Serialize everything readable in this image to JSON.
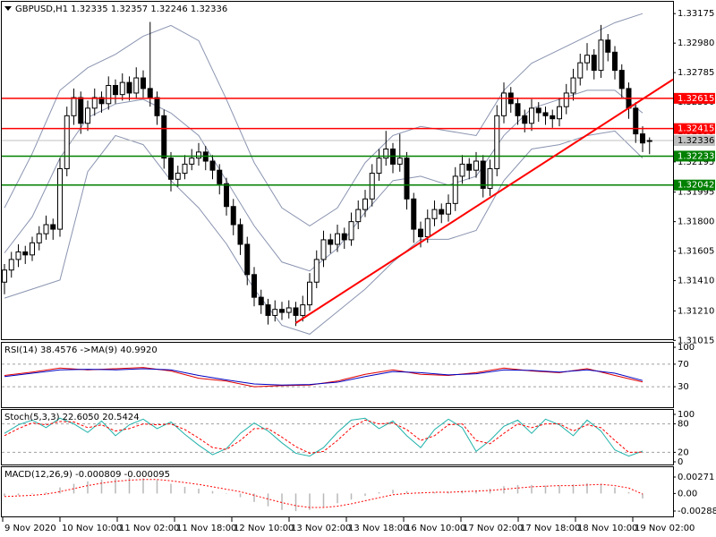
{
  "chart_data": [
    {
      "type": "candlestick",
      "title": "GBPUSD,H1",
      "color_up": "#ffffff",
      "color_down": "#000000",
      "ylim": [
        1.31011,
        1.33265
      ],
      "yticks": [
        1.33175,
        {
          "value": 1.3298,
          "label": "1.32980"
        },
        1.32785,
        {
          "value": 1.3259,
          "label": "1.32590"
        },
        1.32395,
        1.32195,
        1.31995,
        {
          "value": 1.318,
          "label": "1.31800"
        },
        1.31605,
        {
          "value": 1.3141,
          "label": "1.31410"
        },
        {
          "value": 1.3121,
          "label": "1.31210"
        },
        1.31015
      ],
      "time_labels": [
        "9 Nov 2020",
        "10 Nov 10:00",
        "11 Nov 02:00",
        "11 Nov 18:00",
        "12 Nov 10:00",
        "13 Nov 02:00",
        "13 Nov 18:00",
        "16 Nov 10:00",
        "17 Nov 02:00",
        "17 Nov 18:00",
        "18 Nov 10:00",
        "19 Nov 02:00"
      ],
      "candles": [
        [
          1.314,
          1.3152,
          1.3132,
          1.3148
        ],
        [
          1.3148,
          1.316,
          1.3143,
          1.3155
        ],
        [
          1.3155,
          1.3165,
          1.315,
          1.316
        ],
        [
          1.316,
          1.3164,
          1.3152,
          1.3158
        ],
        [
          1.3158,
          1.317,
          1.3154,
          1.3166
        ],
        [
          1.3166,
          1.3177,
          1.3161,
          1.3172
        ],
        [
          1.3172,
          1.3184,
          1.3168,
          1.3178
        ],
        [
          1.3178,
          1.3182,
          1.3168,
          1.3175
        ],
        [
          1.3175,
          1.3222,
          1.317,
          1.3215
        ],
        [
          1.3215,
          1.3256,
          1.321,
          1.325
        ],
        [
          1.325,
          1.3268,
          1.3244,
          1.3262
        ],
        [
          1.3262,
          1.3266,
          1.3238,
          1.3245
        ],
        [
          1.3245,
          1.326,
          1.324,
          1.3255
        ],
        [
          1.3255,
          1.3268,
          1.325,
          1.3262
        ],
        [
          1.3262,
          1.3266,
          1.3252,
          1.3258
        ],
        [
          1.3258,
          1.3276,
          1.3254,
          1.327
        ],
        [
          1.327,
          1.3274,
          1.3258,
          1.3264
        ],
        [
          1.3264,
          1.3278,
          1.326,
          1.3272
        ],
        [
          1.3272,
          1.3276,
          1.326,
          1.3265
        ],
        [
          1.3265,
          1.3282,
          1.3261,
          1.3275
        ],
        [
          1.3275,
          1.328,
          1.3262,
          1.3268
        ],
        [
          1.3268,
          1.3312,
          1.3256,
          1.3262
        ],
        [
          1.3262,
          1.3266,
          1.3244,
          1.325
        ],
        [
          1.325,
          1.3254,
          1.3215,
          1.3222
        ],
        [
          1.3222,
          1.3226,
          1.32,
          1.3208
        ],
        [
          1.3208,
          1.3217,
          1.3203,
          1.3212
        ],
        [
          1.3212,
          1.3224,
          1.3208,
          1.3218
        ],
        [
          1.3218,
          1.3228,
          1.3214,
          1.3222
        ],
        [
          1.3222,
          1.3232,
          1.3217,
          1.3226
        ],
        [
          1.3226,
          1.323,
          1.3214,
          1.322
        ],
        [
          1.322,
          1.3224,
          1.3208,
          1.3214
        ],
        [
          1.3214,
          1.3218,
          1.3198,
          1.3205
        ],
        [
          1.3205,
          1.3209,
          1.3184,
          1.319
        ],
        [
          1.319,
          1.3195,
          1.3171,
          1.3178
        ],
        [
          1.3178,
          1.3182,
          1.3158,
          1.3165
        ],
        [
          1.3165,
          1.317,
          1.3138,
          1.3145
        ],
        [
          1.3145,
          1.315,
          1.3124,
          1.313
        ],
        [
          1.313,
          1.3135,
          1.3119,
          1.3125
        ],
        [
          1.3125,
          1.3129,
          1.3112,
          1.3118
        ],
        [
          1.3118,
          1.3128,
          1.3114,
          1.3122
        ],
        [
          1.3122,
          1.3127,
          1.3115,
          1.312
        ],
        [
          1.312,
          1.3128,
          1.3116,
          1.3123
        ],
        [
          1.3123,
          1.3127,
          1.3111,
          1.3118
        ],
        [
          1.3118,
          1.3131,
          1.3114,
          1.3125
        ],
        [
          1.3125,
          1.3146,
          1.3121,
          1.314
        ],
        [
          1.314,
          1.3161,
          1.3136,
          1.3155
        ],
        [
          1.3155,
          1.3174,
          1.315,
          1.3168
        ],
        [
          1.3168,
          1.3172,
          1.3159,
          1.3165
        ],
        [
          1.3165,
          1.3178,
          1.316,
          1.3172
        ],
        [
          1.3172,
          1.3176,
          1.3162,
          1.3168
        ],
        [
          1.3168,
          1.3186,
          1.3164,
          1.318
        ],
        [
          1.318,
          1.3194,
          1.3175,
          1.3188
        ],
        [
          1.3188,
          1.3201,
          1.3183,
          1.3195
        ],
        [
          1.3195,
          1.3218,
          1.319,
          1.3212
        ],
        [
          1.3212,
          1.3228,
          1.3207,
          1.3222
        ],
        [
          1.3222,
          1.324,
          1.3217,
          1.3228
        ],
        [
          1.3228,
          1.3232,
          1.3212,
          1.3218
        ],
        [
          1.3218,
          1.3238,
          1.3213,
          1.3222
        ],
        [
          1.3222,
          1.3226,
          1.3188,
          1.3195
        ],
        [
          1.3195,
          1.3199,
          1.3166,
          1.3175
        ],
        [
          1.3175,
          1.318,
          1.3163,
          1.317
        ],
        [
          1.317,
          1.3188,
          1.3166,
          1.3182
        ],
        [
          1.3182,
          1.3194,
          1.3177,
          1.3188
        ],
        [
          1.3188,
          1.3192,
          1.3179,
          1.3185
        ],
        [
          1.3185,
          1.3198,
          1.318,
          1.3192
        ],
        [
          1.3192,
          1.3216,
          1.3187,
          1.321
        ],
        [
          1.321,
          1.3224,
          1.3205,
          1.3218
        ],
        [
          1.3218,
          1.3222,
          1.3208,
          1.3214
        ],
        [
          1.3214,
          1.3226,
          1.3209,
          1.322
        ],
        [
          1.322,
          1.3224,
          1.3196,
          1.3202
        ],
        [
          1.3202,
          1.3221,
          1.3197,
          1.3215
        ],
        [
          1.3215,
          1.3257,
          1.321,
          1.325
        ],
        [
          1.325,
          1.3272,
          1.3245,
          1.3265
        ],
        [
          1.3265,
          1.3269,
          1.3252,
          1.3258
        ],
        [
          1.3258,
          1.3262,
          1.3244,
          1.325
        ],
        [
          1.325,
          1.3254,
          1.3239,
          1.3245
        ],
        [
          1.3245,
          1.3261,
          1.324,
          1.3255
        ],
        [
          1.3255,
          1.3259,
          1.3246,
          1.3252
        ],
        [
          1.3252,
          1.3256,
          1.3244,
          1.325
        ],
        [
          1.325,
          1.3254,
          1.3242,
          1.3248
        ],
        [
          1.3248,
          1.3262,
          1.3243,
          1.3256
        ],
        [
          1.3256,
          1.3271,
          1.3251,
          1.3265
        ],
        [
          1.3265,
          1.3281,
          1.326,
          1.3275
        ],
        [
          1.3275,
          1.3291,
          1.327,
          1.3285
        ],
        [
          1.3285,
          1.3298,
          1.328,
          1.329
        ],
        [
          1.329,
          1.3294,
          1.3274,
          1.328
        ],
        [
          1.328,
          1.331,
          1.3275,
          1.33
        ],
        [
          1.33,
          1.3304,
          1.3286,
          1.3292
        ],
        [
          1.3292,
          1.3296,
          1.3274,
          1.328
        ],
        [
          1.328,
          1.3284,
          1.3262,
          1.3268
        ],
        [
          1.3268,
          1.3272,
          1.3248,
          1.3255
        ],
        [
          1.3255,
          1.3259,
          1.3232,
          1.3238
        ],
        [
          1.3238,
          1.3243,
          1.3226,
          1.3232
        ],
        [
          1.32335,
          1.32357,
          1.32246,
          1.32336
        ]
      ],
      "bands": {
        "color": "#8a94b0",
        "x": [
          0,
          4,
          8,
          12,
          16,
          20,
          24,
          28,
          32,
          36,
          40,
          44,
          48,
          52,
          56,
          60,
          64,
          68,
          72,
          76,
          80,
          84,
          88,
          92
        ],
        "upper": [
          1.31891,
          1.3225,
          1.32668,
          1.32817,
          1.32906,
          1.33026,
          1.33097,
          1.32996,
          1.32608,
          1.3219,
          1.31891,
          1.31772,
          1.31891,
          1.3219,
          1.32369,
          1.32429,
          1.32399,
          1.32369,
          1.32668,
          1.32847,
          1.32936,
          1.33026,
          1.33115,
          1.33175
        ],
        "middle": [
          1.31593,
          1.31832,
          1.3222,
          1.32488,
          1.32578,
          1.32608,
          1.32518,
          1.32369,
          1.32071,
          1.31772,
          1.31533,
          1.31474,
          1.31623,
          1.31862,
          1.32071,
          1.321,
          1.32041,
          1.321,
          1.32369,
          1.32548,
          1.32608,
          1.32668,
          1.32668,
          1.32518
        ],
        "lower": [
          1.31294,
          1.31354,
          1.31414,
          1.3213,
          1.32369,
          1.32309,
          1.32071,
          1.31891,
          1.31653,
          1.31354,
          1.31115,
          1.31056,
          1.31205,
          1.31354,
          1.31533,
          1.31683,
          1.31683,
          1.31742,
          1.32071,
          1.3228,
          1.32309,
          1.32369,
          1.32399,
          1.3222
        ]
      },
      "hlines": [
        {
          "value": 1.32615,
          "color": "#ff0000"
        },
        {
          "value": 1.32415,
          "color": "#ff0000"
        },
        {
          "value": 1.32233,
          "color": "#008000"
        },
        {
          "value": 1.32042,
          "color": "#008000"
        }
      ],
      "current_price": {
        "value": 1.32336,
        "color": "#c0c0c0"
      },
      "trendline": {
        "x": [
          42,
          96.4
        ],
        "y": [
          1.3113,
          1.3274
        ],
        "color": "#ff0000"
      }
    },
    {
      "type": "line",
      "ylim": [
        0,
        100
      ],
      "yticks": [
        100,
        70,
        30
      ],
      "x": [
        0,
        4,
        8,
        12,
        16,
        20,
        24,
        28,
        32,
        36,
        40,
        44,
        48,
        52,
        56,
        60,
        64,
        68,
        72,
        76,
        80,
        84,
        88,
        92
      ],
      "series": [
        {
          "name": "RSI(14)",
          "readout": "38.4576",
          "color": "#e00000",
          "dash": "none",
          "values": [
            50,
            56,
            63,
            60,
            62,
            64,
            58,
            45,
            40,
            30,
            32,
            33,
            40,
            52,
            60,
            52,
            50,
            55,
            63,
            58,
            55,
            62,
            50,
            38.4576
          ]
        },
        {
          "name": "->MA(9)",
          "readout": "40.9920",
          "color": "#0000c0",
          "dash": "none",
          "values": [
            48,
            54,
            60,
            61,
            60,
            62,
            60,
            50,
            42,
            35,
            33,
            34,
            38,
            48,
            57,
            55,
            51,
            53,
            60,
            59,
            56,
            60,
            54,
            40.992
          ]
        }
      ]
    },
    {
      "type": "line",
      "title": "Stoch(5,3,3)",
      "ylim": [
        0,
        100
      ],
      "yticks": [
        100,
        80,
        20,
        0
      ],
      "x": [
        0,
        2,
        4,
        6,
        8,
        10,
        12,
        14,
        16,
        18,
        20,
        22,
        24,
        26,
        28,
        30,
        32,
        34,
        36,
        38,
        40,
        42,
        44,
        46,
        48,
        50,
        52,
        54,
        56,
        58,
        60,
        62,
        64,
        66,
        68,
        70,
        72,
        74,
        76,
        78,
        80,
        82,
        84,
        86,
        88,
        90,
        92
      ],
      "series": [
        {
          "readout": "22.6050",
          "color": "#20b2aa",
          "dash": "none",
          "values": [
            60,
            78,
            88,
            72,
            92,
            80,
            62,
            86,
            55,
            78,
            90,
            70,
            84,
            58,
            35,
            15,
            28,
            60,
            82,
            65,
            40,
            18,
            12,
            30,
            62,
            88,
            92,
            70,
            86,
            55,
            30,
            68,
            90,
            72,
            22,
            45,
            75,
            88,
            60,
            90,
            78,
            55,
            88,
            65,
            25,
            12,
            22.605
          ]
        },
        {
          "readout": "20.5424",
          "color": "#ff0000",
          "dash": "3,2",
          "values": [
            55,
            70,
            82,
            78,
            85,
            84,
            72,
            78,
            65,
            70,
            80,
            78,
            80,
            68,
            50,
            30,
            26,
            45,
            70,
            70,
            52,
            32,
            18,
            22,
            45,
            72,
            88,
            80,
            82,
            68,
            45,
            55,
            78,
            80,
            45,
            38,
            60,
            80,
            72,
            80,
            80,
            65,
            78,
            72,
            45,
            20,
            20.5424
          ]
        }
      ]
    },
    {
      "type": "bar",
      "title": "MACD(12,26,9)",
      "ylim": [
        -0.002889,
        0.00271
      ],
      "yticks": [
        0.00271,
        {
          "value": 0,
          "label": "0.00"
        },
        -0.002889
      ],
      "x": [
        0,
        2,
        4,
        6,
        8,
        10,
        12,
        14,
        16,
        18,
        20,
        22,
        24,
        26,
        28,
        30,
        32,
        34,
        36,
        38,
        40,
        42,
        44,
        46,
        48,
        50,
        52,
        54,
        56,
        58,
        60,
        62,
        64,
        66,
        68,
        70,
        72,
        74,
        76,
        78,
        80,
        82,
        84,
        86,
        88,
        90,
        92
      ],
      "series": [
        {
          "readout": "-0.000809",
          "color": "#b8b8b8",
          "values": [
            -0.0004,
            -0.0003,
            -0.0001,
            0.0002,
            0.001,
            0.0016,
            0.002,
            0.0023,
            0.0025,
            0.0026,
            0.0025,
            0.0022,
            0.0016,
            0.0011,
            0.0008,
            0.0004,
            0,
            -0.0006,
            -0.0014,
            -0.0021,
            -0.0027,
            -0.0029,
            -0.0027,
            -0.0022,
            -0.0016,
            -0.001,
            -0.0004,
            0.0002,
            0.0006,
            0.0004,
            0.0001,
            0.0002,
            0.0003,
            0.0005,
            0.0005,
            0.0008,
            0.0012,
            0.0014,
            0.0014,
            0.0013,
            0.0013,
            0.0015,
            0.0017,
            0.0016,
            0.001,
            0.0002,
            -0.000809
          ]
        },
        {
          "readout": "-0.000095",
          "color": "#ff0000",
          "dash": "2,2",
          "values": [
            -0.0005,
            -0.0004,
            -0.0003,
            -0.0001,
            0.0003,
            0.0008,
            0.0013,
            0.0017,
            0.002,
            0.0022,
            0.0023,
            0.0023,
            0.0021,
            0.0018,
            0.0015,
            0.0011,
            0.0007,
            0.0003,
            -0.0003,
            -0.0009,
            -0.0015,
            -0.002,
            -0.0023,
            -0.0023,
            -0.0021,
            -0.0017,
            -0.0012,
            -0.0007,
            -0.0002,
            0,
            0.0001,
            0.0002,
            0.0002,
            0.0003,
            0.0004,
            0.0005,
            0.0007,
            0.0009,
            0.0011,
            0.0012,
            0.0013,
            0.0013,
            0.0014,
            0.0015,
            0.0013,
            0.0009,
            -9.5e-05
          ]
        }
      ]
    }
  ]
}
